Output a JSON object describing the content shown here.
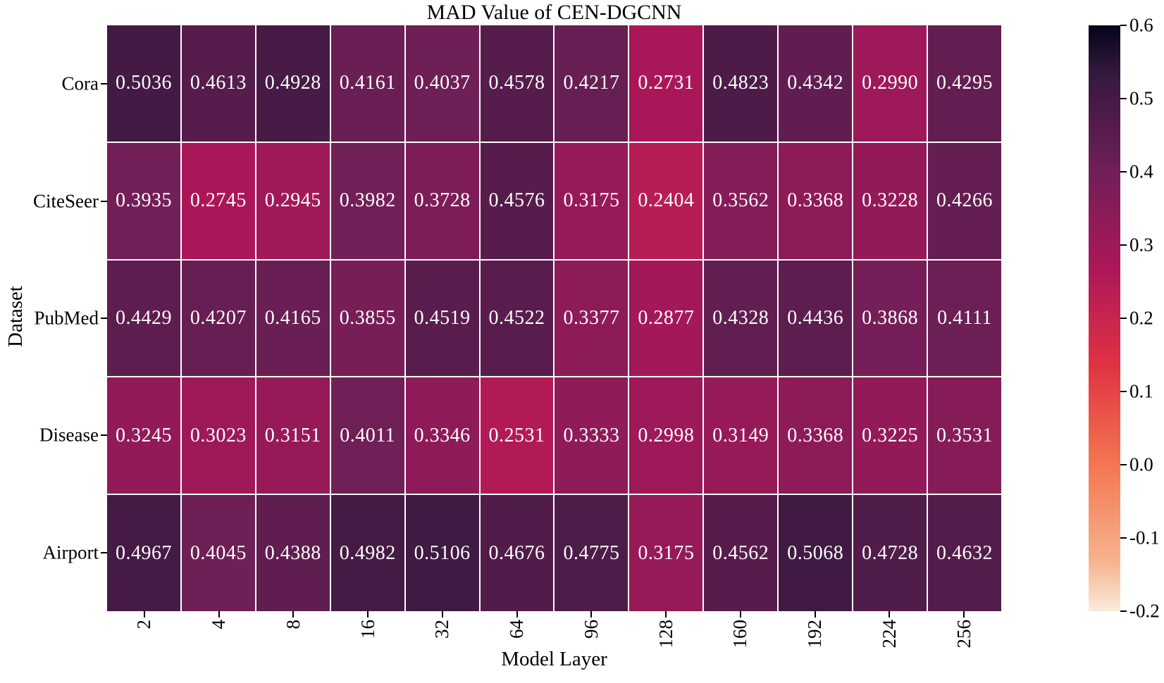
{
  "chart_data": {
    "type": "heatmap",
    "title": "MAD Value of CEN-DGCNN",
    "xlabel": "Model Layer",
    "ylabel": "Dataset",
    "x_categories": [
      "2",
      "4",
      "8",
      "16",
      "32",
      "64",
      "96",
      "128",
      "160",
      "192",
      "224",
      "256"
    ],
    "y_categories": [
      "Cora",
      "CiteSeer",
      "PubMed",
      "Disease",
      "Airport"
    ],
    "values": [
      [
        0.5036,
        0.4613,
        0.4928,
        0.4161,
        0.4037,
        0.4578,
        0.4217,
        0.2731,
        0.4823,
        0.4342,
        0.299,
        0.4295
      ],
      [
        0.3935,
        0.2745,
        0.2945,
        0.3982,
        0.3728,
        0.4576,
        0.3175,
        0.2404,
        0.3562,
        0.3368,
        0.3228,
        0.4266
      ],
      [
        0.4429,
        0.4207,
        0.4165,
        0.3855,
        0.4519,
        0.4522,
        0.3377,
        0.2877,
        0.4328,
        0.4436,
        0.3868,
        0.4111
      ],
      [
        0.3245,
        0.3023,
        0.3151,
        0.4011,
        0.3346,
        0.2531,
        0.3333,
        0.2998,
        0.3149,
        0.3368,
        0.3225,
        0.3531
      ],
      [
        0.4967,
        0.4045,
        0.4388,
        0.4982,
        0.5106,
        0.4676,
        0.4775,
        0.3175,
        0.4562,
        0.5068,
        0.4728,
        0.4632
      ]
    ],
    "value_decimals": 4,
    "vmin": -0.2,
    "vmax": 0.6,
    "colorbar_ticks": [
      0.6,
      0.5,
      0.4,
      0.3,
      0.2,
      0.1,
      0.0,
      -0.1,
      -0.2
    ],
    "colorbar_tick_decimals": 1,
    "colormap": "rocket_r",
    "colormap_stops": [
      {
        "u": 0.0,
        "color": "#FAEBDD"
      },
      {
        "u": 0.0833,
        "color": "#F6B48F"
      },
      {
        "u": 0.25,
        "color": "#F37651"
      },
      {
        "u": 0.4167,
        "color": "#E13342"
      },
      {
        "u": 0.5833,
        "color": "#AD1759"
      },
      {
        "u": 0.75,
        "color": "#701F57"
      },
      {
        "u": 0.9167,
        "color": "#35193E"
      },
      {
        "u": 1.0,
        "color": "#03051A"
      }
    ],
    "annotation_color": "#FFFFFF",
    "grid_line_color": "#FFFFFF",
    "axis_text_color": "#000000",
    "legend_position": "right-colorbar",
    "grid": "white-cell-separators"
  }
}
